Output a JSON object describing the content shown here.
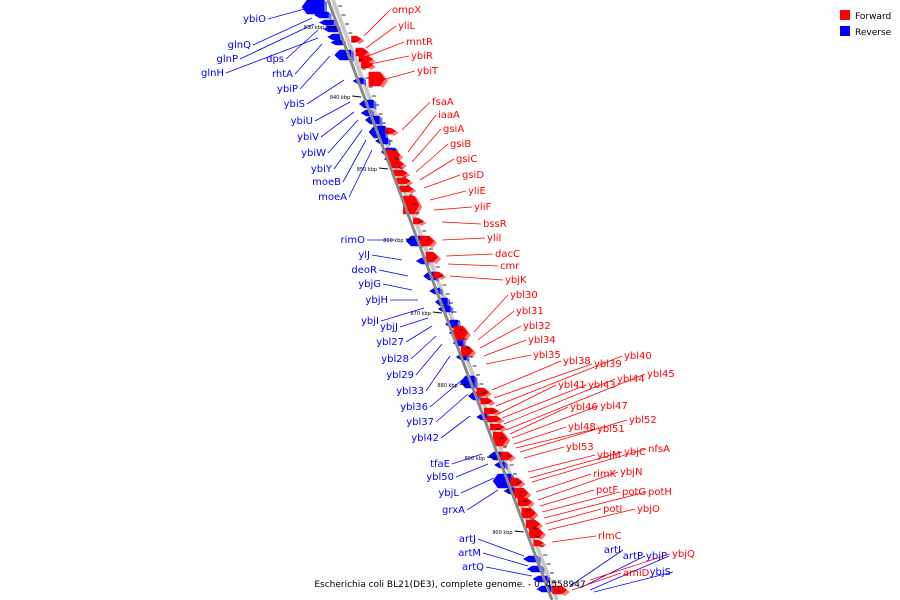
{
  "title": "Escherichia coli BL21(DE3), complete genome. - 0..4558947",
  "colors": {
    "forward": "#ff0000",
    "reverse": "#0000ff",
    "backbone": "#888888",
    "shadow": "#c8c8c8"
  },
  "legend": [
    {
      "label": "Forward",
      "color": "#ff0000"
    },
    {
      "label": "Reverse",
      "color": "#0000ff"
    }
  ],
  "ticks": [
    "830 kbp",
    "840 kbp",
    "850 kbp",
    "860 kbp",
    "870 kbp",
    "880 kbp",
    "890 kbp",
    "900 kbp"
  ],
  "reverse_genes": [
    "ybiO",
    "glnQ",
    "glnP",
    "dps",
    "glnH",
    "rhtA",
    "ybiP",
    "ybiS",
    "ybiU",
    "ybiV",
    "ybiW",
    "ybiY",
    "moeB",
    "moeA",
    "rimO",
    "ylJ",
    "deoR",
    "ybjG",
    "ybjH",
    "ybjI",
    "ybjJ",
    "ybl27",
    "ybl28",
    "ybl29",
    "ybl33",
    "ybl36",
    "ybl37",
    "ybl42",
    "tfaE",
    "ybl50",
    "ybjL",
    "grxA",
    "artJ",
    "artM",
    "artQ",
    "artI",
    "artP",
    "ybjP",
    "ybjS"
  ],
  "forward_genes": [
    "ompX",
    "yliL",
    "mntR",
    "ybiR",
    "ybiT",
    "fsaA",
    "iaaA",
    "gsiA",
    "gsiB",
    "gsiC",
    "gsiD",
    "yliE",
    "yliF",
    "bssR",
    "yliI",
    "dacC",
    "cmr",
    "ybjK",
    "ybl30",
    "ybl31",
    "ybl32",
    "ybl34",
    "ybl35",
    "ybl38",
    "ybl39",
    "ybl40",
    "ybl41",
    "ybl43",
    "ybl44",
    "ybl45",
    "ybl46",
    "ybl47",
    "ybl48",
    "ybl51",
    "ybl52",
    "ybl53",
    "ybjM",
    "ybjC",
    "nfsA",
    "rimK",
    "ybjN",
    "potF",
    "potG",
    "potH",
    "potI",
    "ybjO",
    "rlmC",
    "ybjQ",
    "amiD"
  ]
}
